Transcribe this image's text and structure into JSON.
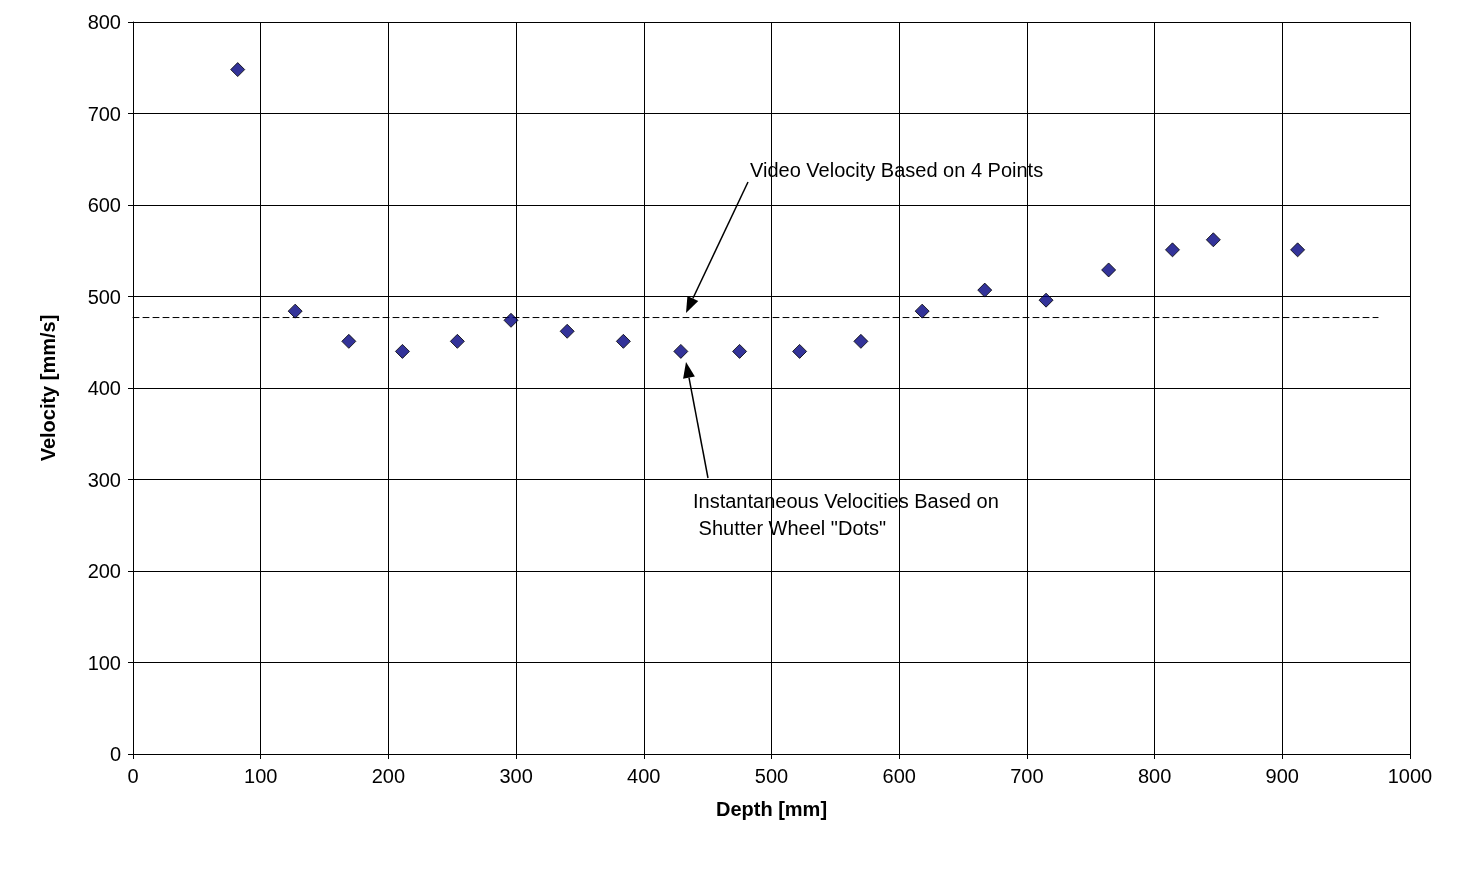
{
  "chart_data": {
    "type": "scatter",
    "xlabel": "Depth [mm]",
    "ylabel": "Velocity [mm/s]",
    "xlim": [
      0,
      1000
    ],
    "xticks": [
      0,
      100,
      200,
      300,
      400,
      500,
      600,
      700,
      800,
      900,
      1000
    ],
    "ylim": [
      0,
      800
    ],
    "yticks": [
      0,
      100,
      200,
      300,
      400,
      500,
      600,
      700,
      800
    ],
    "grid": true,
    "series": [
      {
        "color": "#000080",
        "marker": "diamond",
        "x": [
          82,
          127,
          169,
          211,
          254,
          296,
          340,
          384,
          429,
          475,
          522,
          570,
          618,
          667,
          715,
          764,
          814,
          846,
          912
        ],
        "values": [
          748,
          484,
          451,
          440,
          451,
          474,
          462,
          451,
          440,
          440,
          440,
          451,
          484,
          507,
          496,
          529,
          551,
          562,
          551
        ]
      },
      {
        "type": "line",
        "color": "#000000",
        "marker": "none",
        "line_style": "dashed",
        "x": [
          0,
          975
        ],
        "values": [
          477,
          477
        ]
      }
    ],
    "annotations": [
      "Video Velocity Based on 4 Points",
      "Instantaneous Velocities Based on\n Shutter Wheel \"Dots\""
    ]
  }
}
